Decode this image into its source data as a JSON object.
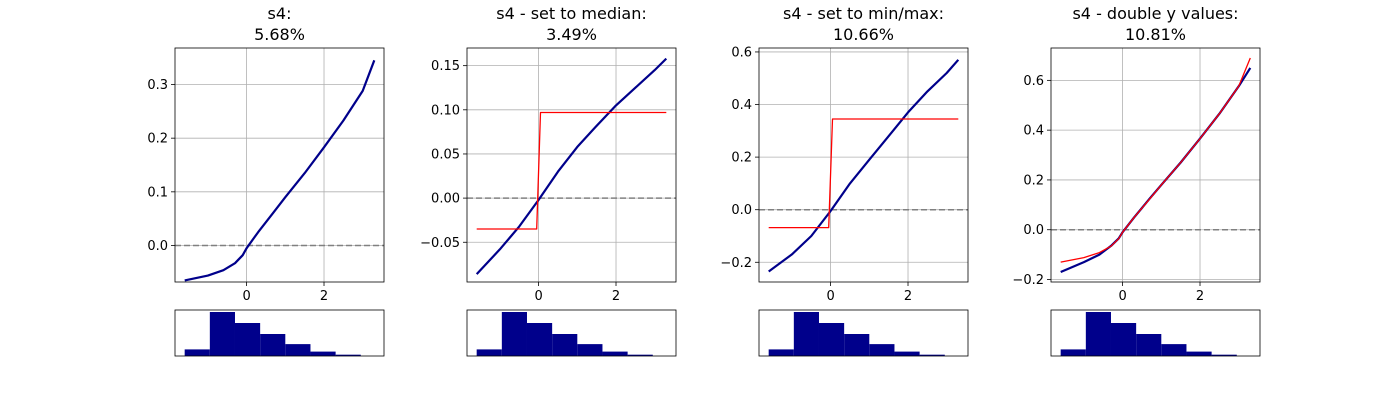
{
  "chart_data": [
    {
      "type": "line",
      "title": "s4:",
      "subtitle": "5.68%",
      "xlim": [
        -1.85,
        3.55
      ],
      "ylim": [
        -0.068,
        0.368
      ],
      "xticks": [
        0,
        2
      ],
      "xtick_labels": [
        "0",
        "2"
      ],
      "yticks": [
        0.0,
        0.1,
        0.2,
        0.3
      ],
      "ytick_labels": [
        "0.0",
        "0.1",
        "0.2",
        "0.3"
      ],
      "grid": true,
      "reference_line_y": 0,
      "series": [
        {
          "color": "#00008b",
          "x": [
            -1.6,
            -1.0,
            -0.6,
            -0.3,
            -0.1,
            0.0,
            0.3,
            0.7,
            1.0,
            1.5,
            2.0,
            2.5,
            3.0,
            3.3
          ],
          "y": [
            -0.065,
            -0.056,
            -0.046,
            -0.033,
            -0.018,
            -0.005,
            0.025,
            0.062,
            0.09,
            0.135,
            0.183,
            0.233,
            0.288,
            0.345
          ]
        }
      ],
      "histogram": {
        "color": "#00008b",
        "bins": [
          -1.6,
          -0.95,
          -0.3,
          0.35,
          1.0,
          1.65,
          2.3,
          2.95,
          3.6
        ],
        "counts": [
          0.15,
          1.0,
          0.75,
          0.5,
          0.27,
          0.1,
          0.03,
          0.0
        ]
      }
    },
    {
      "type": "line",
      "title": "s4 - set to median:",
      "subtitle": "3.49%",
      "xlim": [
        -1.85,
        3.55
      ],
      "ylim": [
        -0.095,
        0.17
      ],
      "xticks": [
        0,
        2
      ],
      "xtick_labels": [
        "0",
        "2"
      ],
      "yticks": [
        -0.05,
        0.0,
        0.05,
        0.1,
        0.15
      ],
      "ytick_labels": [
        "−0.05",
        "0.00",
        "0.05",
        "0.10",
        "0.15"
      ],
      "grid": true,
      "reference_line_y": 0,
      "series": [
        {
          "color": "#00008b",
          "x": [
            -1.6,
            -1.0,
            -0.5,
            0.0,
            0.5,
            1.0,
            1.5,
            2.0,
            2.5,
            3.0,
            3.3
          ],
          "y": [
            -0.086,
            -0.058,
            -0.032,
            -0.002,
            0.03,
            0.058,
            0.082,
            0.105,
            0.125,
            0.145,
            0.158
          ]
        },
        {
          "color": "#ff0000",
          "x": [
            -1.6,
            -0.05,
            0.05,
            3.3
          ],
          "y": [
            -0.035,
            -0.035,
            0.097,
            0.097
          ]
        }
      ],
      "histogram": {
        "color": "#00008b",
        "bins": [
          -1.6,
          -0.95,
          -0.3,
          0.35,
          1.0,
          1.65,
          2.3,
          2.95,
          3.6
        ],
        "counts": [
          0.15,
          1.0,
          0.75,
          0.5,
          0.27,
          0.1,
          0.03,
          0.0
        ]
      }
    },
    {
      "type": "line",
      "title": "s4 - set to min/max:",
      "subtitle": "10.66%",
      "xlim": [
        -1.85,
        3.55
      ],
      "ylim": [
        -0.275,
        0.615
      ],
      "xticks": [
        0,
        2
      ],
      "xtick_labels": [
        "0",
        "2"
      ],
      "yticks": [
        -0.2,
        0.0,
        0.2,
        0.4,
        0.6
      ],
      "ytick_labels": [
        "−0.2",
        "0.0",
        "0.2",
        "0.4",
        "0.6"
      ],
      "grid": true,
      "reference_line_y": 0,
      "series": [
        {
          "color": "#00008b",
          "x": [
            -1.6,
            -1.0,
            -0.5,
            0.0,
            0.5,
            1.0,
            1.5,
            2.0,
            2.5,
            3.0,
            3.3
          ],
          "y": [
            -0.235,
            -0.17,
            -0.1,
            -0.005,
            0.1,
            0.19,
            0.28,
            0.37,
            0.45,
            0.52,
            0.57
          ]
        },
        {
          "color": "#ff0000",
          "x": [
            -1.6,
            -0.05,
            0.05,
            3.3
          ],
          "y": [
            -0.068,
            -0.068,
            0.345,
            0.345
          ]
        }
      ],
      "histogram": {
        "color": "#00008b",
        "bins": [
          -1.6,
          -0.95,
          -0.3,
          0.35,
          1.0,
          1.65,
          2.3,
          2.95,
          3.6
        ],
        "counts": [
          0.15,
          1.0,
          0.75,
          0.5,
          0.27,
          0.1,
          0.03,
          0.0
        ]
      }
    },
    {
      "type": "line",
      "title": "s4 - double y values:",
      "subtitle": "10.81%",
      "xlim": [
        -1.85,
        3.55
      ],
      "ylim": [
        -0.21,
        0.73
      ],
      "xticks": [
        0,
        2
      ],
      "xtick_labels": [
        "0",
        "2"
      ],
      "yticks": [
        -0.2,
        0.0,
        0.2,
        0.4,
        0.6
      ],
      "ytick_labels": [
        "−0.2",
        "0.0",
        "0.2",
        "0.4",
        "0.6"
      ],
      "grid": true,
      "reference_line_y": 0,
      "series": [
        {
          "color": "#00008b",
          "x": [
            -1.6,
            -1.0,
            -0.6,
            -0.3,
            -0.1,
            0.0,
            0.3,
            0.7,
            1.0,
            1.5,
            2.0,
            2.5,
            3.0,
            3.3
          ],
          "y": [
            -0.17,
            -0.13,
            -0.1,
            -0.065,
            -0.035,
            -0.01,
            0.05,
            0.125,
            0.18,
            0.27,
            0.366,
            0.466,
            0.576,
            0.65
          ]
        },
        {
          "color": "#ff0000",
          "x": [
            -1.6,
            -1.0,
            -0.6,
            -0.3,
            -0.1,
            0.0,
            0.3,
            0.7,
            1.0,
            1.5,
            2.0,
            2.5,
            3.0,
            3.3
          ],
          "y": [
            -0.13,
            -0.112,
            -0.092,
            -0.066,
            -0.036,
            -0.01,
            0.05,
            0.124,
            0.18,
            0.27,
            0.366,
            0.466,
            0.576,
            0.69
          ]
        }
      ],
      "histogram": {
        "color": "#00008b",
        "bins": [
          -1.6,
          -0.95,
          -0.3,
          0.35,
          1.0,
          1.65,
          2.3,
          2.95,
          3.6
        ],
        "counts": [
          0.15,
          1.0,
          0.75,
          0.5,
          0.27,
          0.1,
          0.03,
          0.0
        ]
      }
    }
  ]
}
